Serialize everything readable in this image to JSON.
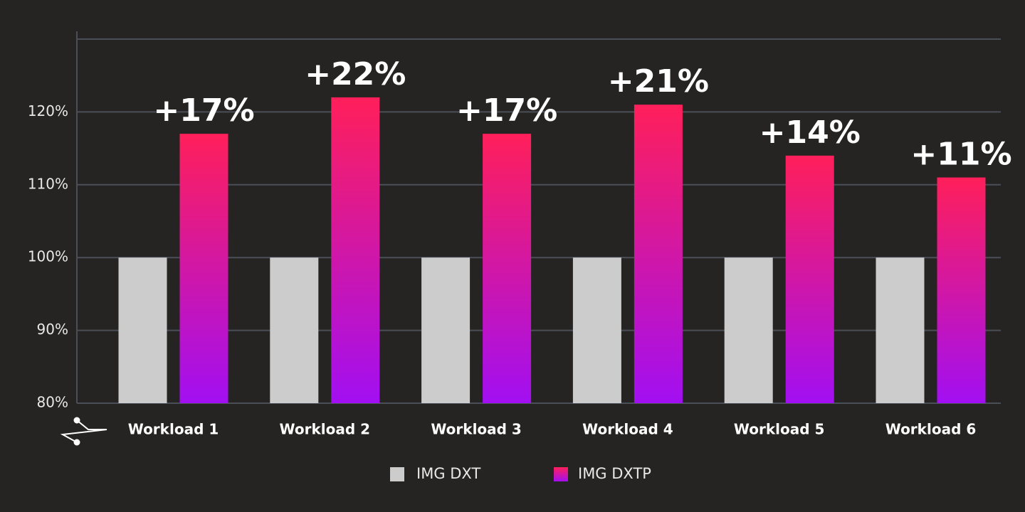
{
  "chart_data": {
    "type": "bar",
    "categories": [
      "Workload 1",
      "Workload 2",
      "Workload 3",
      "Workload 4",
      "Workload 5",
      "Workload 6"
    ],
    "series": [
      {
        "name": "IMG DXT",
        "color": "#cbcccb",
        "values": [
          100,
          100,
          100,
          100,
          100,
          100
        ]
      },
      {
        "name": "IMG DXTP",
        "color": [
          "#ff1f5a",
          "#a20ff2"
        ],
        "values": [
          117,
          122,
          117,
          121,
          114,
          111
        ]
      }
    ],
    "annotations": [
      "+17%",
      "+22%",
      "+17%",
      "+21%",
      "+14%",
      "+11%"
    ],
    "ylim": [
      80,
      130
    ],
    "yticks": [
      {
        "value": 80,
        "label": "80%"
      },
      {
        "value": 90,
        "label": "90%"
      },
      {
        "value": 100,
        "label": "100%"
      },
      {
        "value": 110,
        "label": "110%"
      },
      {
        "value": 120,
        "label": "120%"
      }
    ],
    "grid": true,
    "legend": "bottom"
  }
}
